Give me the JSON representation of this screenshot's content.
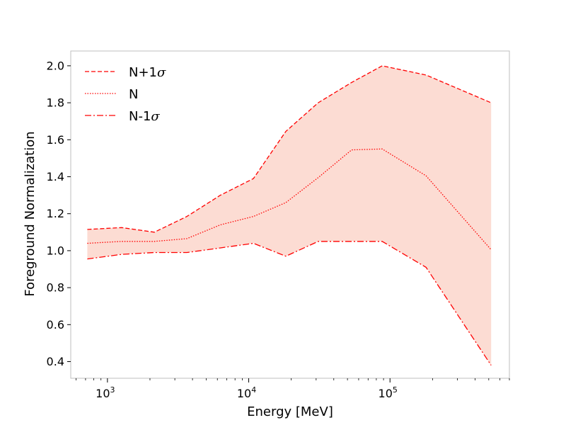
{
  "chart_data": {
    "type": "line",
    "title": "",
    "xlabel": "Energy [MeV]",
    "ylabel": "Foreground Normalization",
    "xscale": "log",
    "xlim": [
      550,
      700000
    ],
    "ylim": [
      0.31,
      2.08
    ],
    "grid": false,
    "legend_position": "top-left",
    "x": [
      720,
      1260,
      2150,
      3650,
      6300,
      10800,
      18300,
      31000,
      53500,
      88000,
      180000,
      520000
    ],
    "series": [
      {
        "name": "N+1σ",
        "legend_main": "N+1",
        "legend_sigma": "σ",
        "style": "dashed",
        "values": [
          1.115,
          1.125,
          1.1,
          1.185,
          1.3,
          1.39,
          1.645,
          1.8,
          1.91,
          2.0,
          1.95,
          1.8
        ]
      },
      {
        "name": "N",
        "legend_main": "N",
        "legend_sigma": "",
        "style": "dotted",
        "values": [
          1.04,
          1.05,
          1.05,
          1.065,
          1.14,
          1.185,
          1.26,
          1.395,
          1.545,
          1.55,
          1.405,
          1.005
        ]
      },
      {
        "name": "N-1σ",
        "legend_main": "N-1",
        "legend_sigma": "σ",
        "style": "dashdot",
        "values": [
          0.955,
          0.98,
          0.99,
          0.99,
          1.015,
          1.04,
          0.97,
          1.05,
          1.05,
          1.05,
          0.91,
          0.38
        ]
      }
    ],
    "band": {
      "between": [
        "N+1σ",
        "N-1σ"
      ],
      "color": "#fcdcd3"
    },
    "line_color": "#ff0000",
    "y_ticks": [
      0.4,
      0.6,
      0.8,
      1.0,
      1.2,
      1.4,
      1.6,
      1.8,
      2.0
    ],
    "y_tick_labels": [
      "0.4",
      "0.6",
      "0.8",
      "1.0",
      "1.2",
      "1.4",
      "1.6",
      "1.8",
      "2.0"
    ],
    "x_major_ticks": [
      {
        "value": 1000,
        "base": "10",
        "exp": "3"
      },
      {
        "value": 10000,
        "base": "10",
        "exp": "4"
      },
      {
        "value": 100000,
        "base": "10",
        "exp": "5"
      }
    ]
  }
}
